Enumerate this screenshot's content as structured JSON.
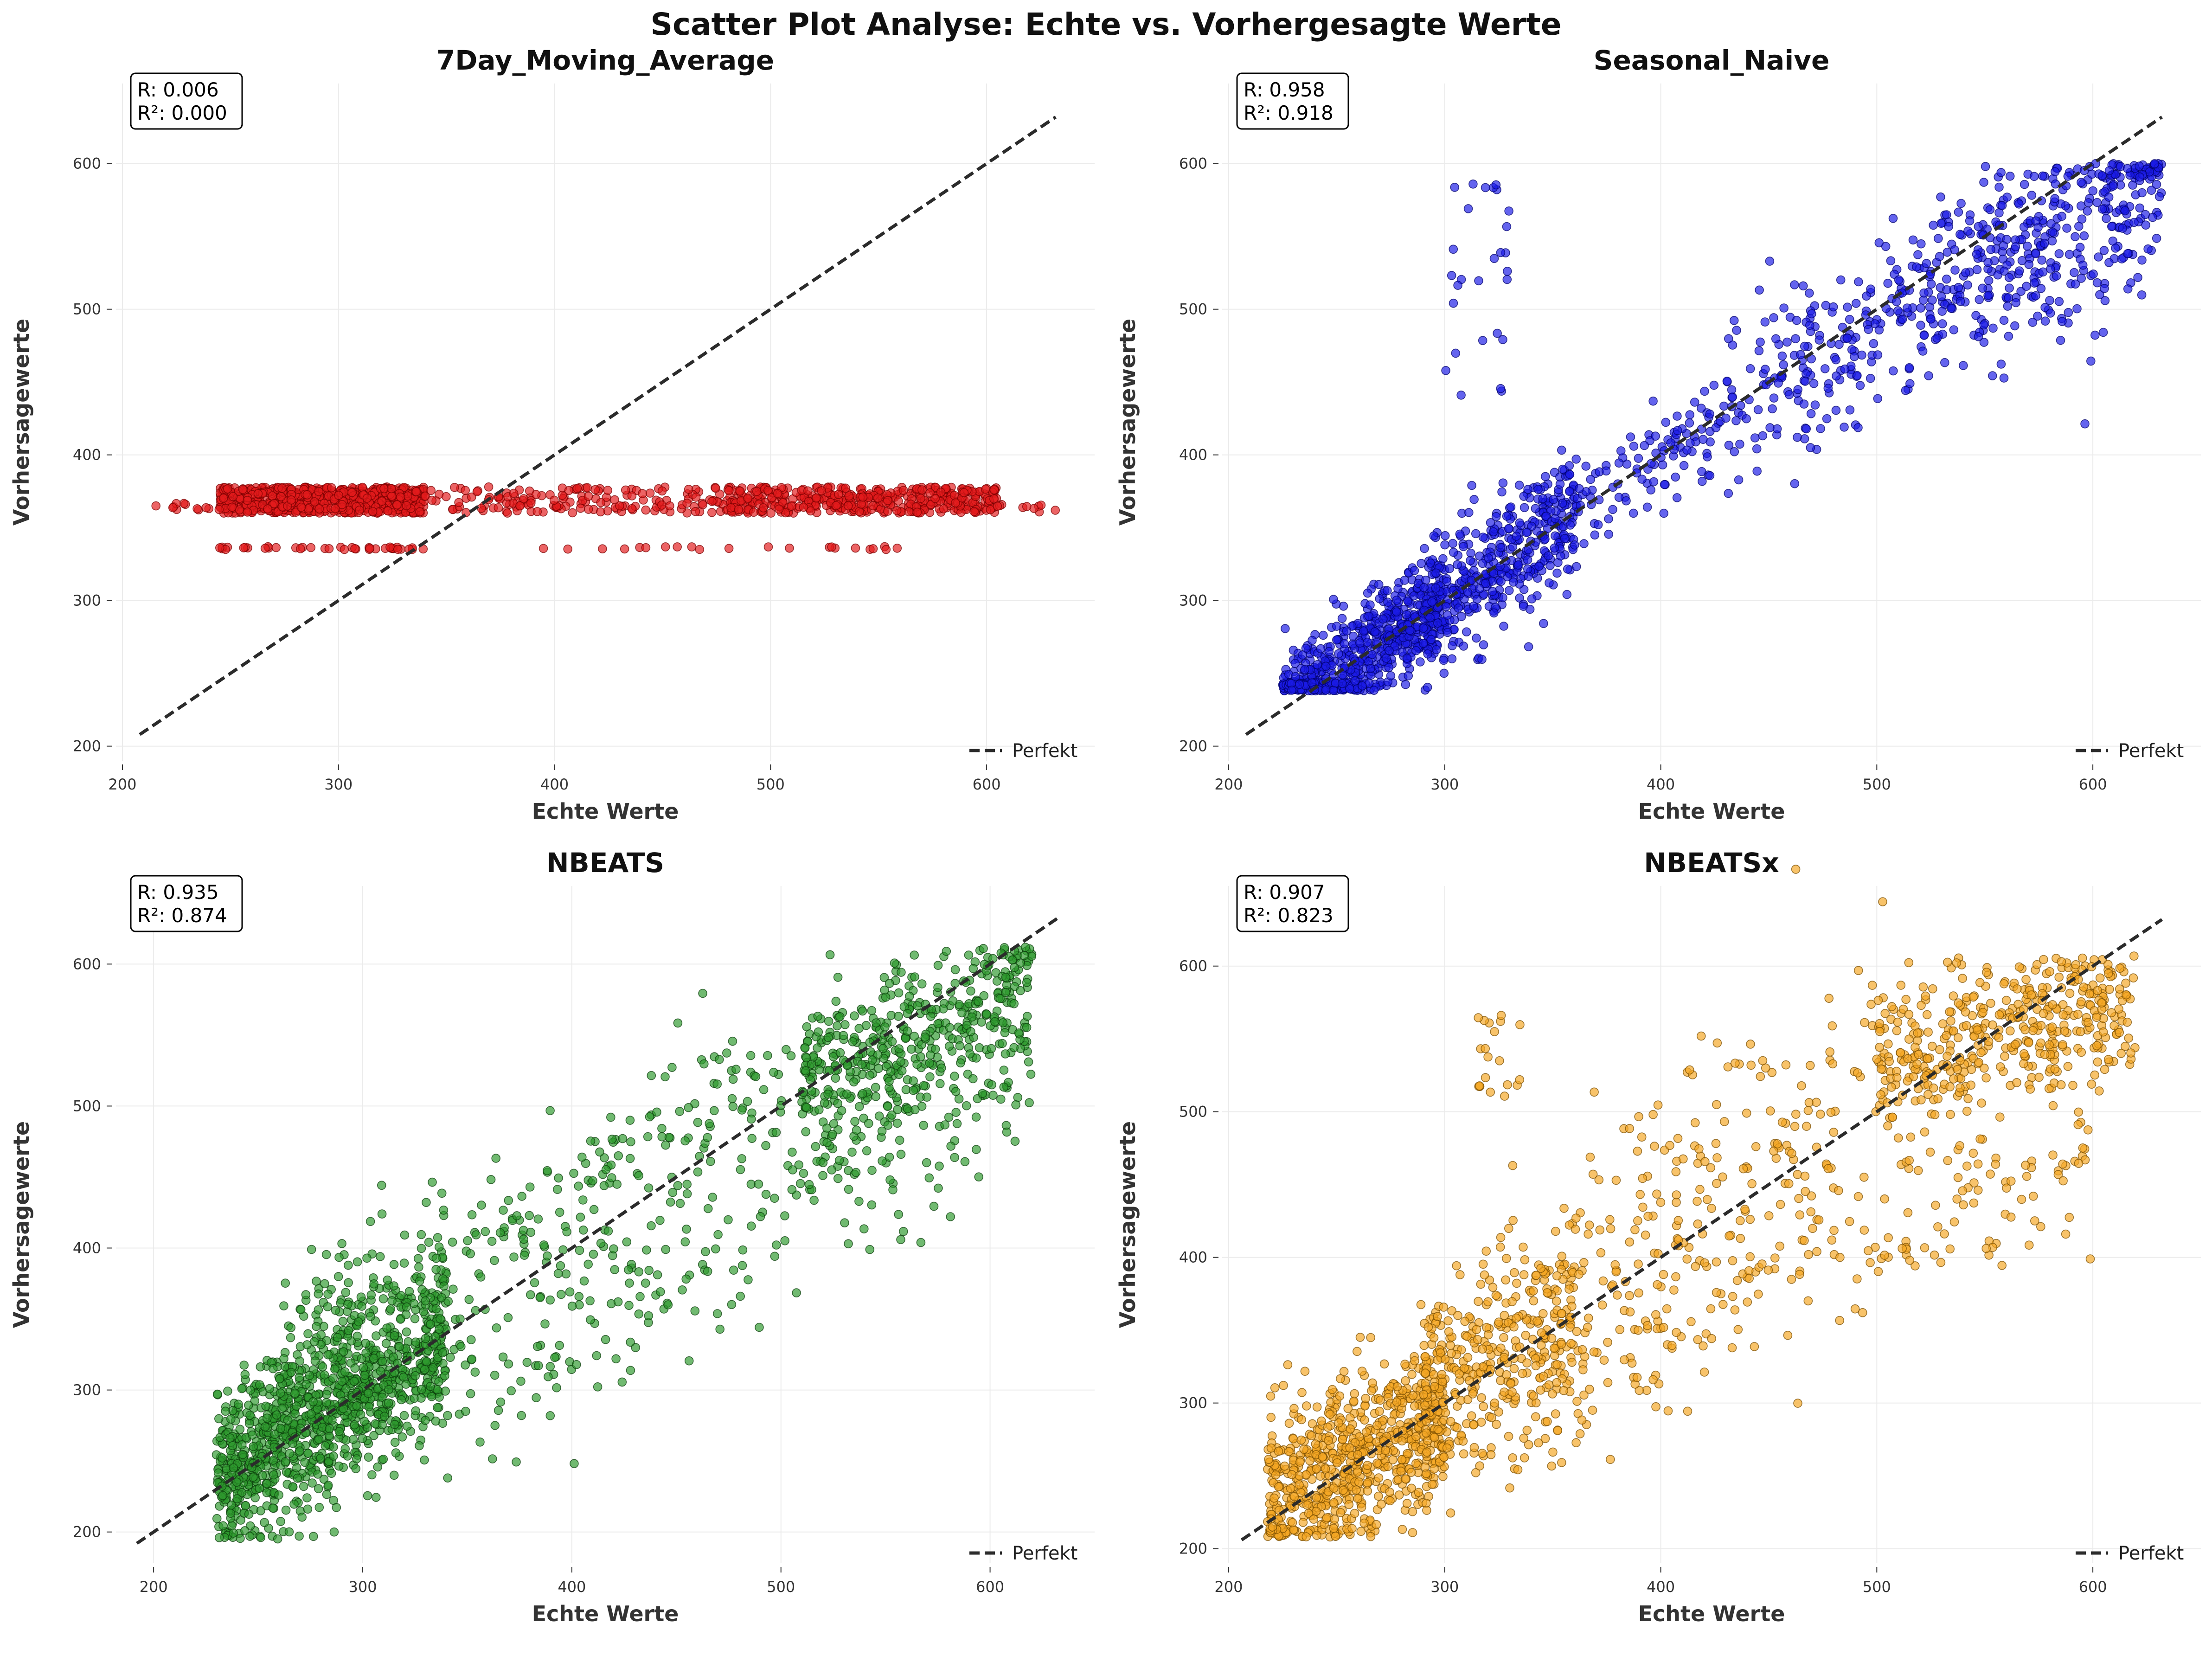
{
  "figure": {
    "title": "Scatter Plot Analyse: Echte vs. Vorhergesagte Werte"
  },
  "chart_data": [
    {
      "type": "scatter",
      "title": "7Day_Moving_Average",
      "xlabel": "Echte Werte",
      "ylabel": "Vorhersagewerte",
      "xlim": [
        197,
        650
      ],
      "ylim": [
        190,
        655
      ],
      "xticks": [
        200,
        300,
        400,
        500,
        600
      ],
      "yticks": [
        200,
        300,
        400,
        500,
        600
      ],
      "stats": {
        "r": "R: 0.006",
        "r2": "R²: 0.000"
      },
      "color": "#e31a1c",
      "edge": "#7a0000",
      "perfect_line": [
        [
          208,
          208
        ],
        [
          632,
          632
        ]
      ],
      "legend": {
        "label": "Perfekt",
        "position": "lower-right"
      },
      "grid": true,
      "clusters": [
        {
          "type": "hband",
          "x": [
            245,
            340
          ],
          "y": [
            360,
            378
          ],
          "n": 700
        },
        {
          "type": "hband",
          "x": [
            340,
            480
          ],
          "y": [
            360,
            378
          ],
          "n": 160
        },
        {
          "type": "hband",
          "x": [
            480,
            605
          ],
          "y": [
            360,
            378
          ],
          "n": 420
        },
        {
          "type": "hband",
          "x": [
            215,
            245
          ],
          "y": [
            362,
            367
          ],
          "n": 12
        },
        {
          "type": "hband",
          "x": [
            605,
            632
          ],
          "y": [
            360,
            366
          ],
          "n": 10
        },
        {
          "type": "hband",
          "x": [
            245,
            340
          ],
          "y": [
            335,
            337
          ],
          "n": 40
        },
        {
          "type": "hband",
          "x": [
            380,
            560
          ],
          "y": [
            335,
            337
          ],
          "n": 22
        }
      ]
    },
    {
      "type": "scatter",
      "title": "Seasonal_Naive",
      "xlabel": "Echte Werte",
      "ylabel": "Vorhersagewerte",
      "xlim": [
        197,
        650
      ],
      "ylim": [
        190,
        655
      ],
      "xticks": [
        200,
        300,
        400,
        500,
        600
      ],
      "yticks": [
        200,
        300,
        400,
        500,
        600
      ],
      "stats": {
        "r": "R: 0.958",
        "r2": "R²: 0.918"
      },
      "color": "#1a1ae6",
      "edge": "#00006b",
      "perfect_line": [
        [
          208,
          208
        ],
        [
          632,
          632
        ]
      ],
      "legend": {
        "label": "Perfekt",
        "position": "lower-right"
      },
      "grid": true,
      "clusters": [
        {
          "type": "diag",
          "x": [
            225,
            300
          ],
          "slope": 1.0,
          "offset": 0,
          "spread": 20,
          "ymin": 238,
          "n": 650
        },
        {
          "type": "diag",
          "x": [
            290,
            360
          ],
          "slope": 1.0,
          "offset": 0,
          "spread": 22,
          "ymin": 238,
          "n": 420
        },
        {
          "type": "diag",
          "x": [
            360,
            430
          ],
          "slope": 1.0,
          "offset": 0,
          "spread": 18,
          "n": 110
        },
        {
          "type": "diag",
          "x": [
            430,
            520
          ],
          "slope": 0.95,
          "offset": 15,
          "spread": 28,
          "n": 200
        },
        {
          "type": "diag",
          "x": [
            520,
            632
          ],
          "slope": 0.8,
          "offset": 85,
          "spread": 35,
          "ymax": 600,
          "n": 420
        },
        {
          "type": "box",
          "x": [
            300,
            330
          ],
          "y": [
            440,
            590
          ],
          "n": 28
        }
      ]
    },
    {
      "type": "scatter",
      "title": "NBEATS",
      "xlabel": "Echte Werte",
      "ylabel": "Vorhersagewerte",
      "xlim": [
        182,
        650
      ],
      "ylim": [
        178,
        655
      ],
      "xticks": [
        200,
        300,
        400,
        500,
        600
      ],
      "yticks": [
        200,
        300,
        400,
        500,
        600
      ],
      "stats": {
        "r": "R: 0.935",
        "r2": "R²: 0.874"
      },
      "color": "#2e9a2e",
      "edge": "#0b3d0b",
      "perfect_line": [
        [
          192,
          192
        ],
        [
          632,
          632
        ]
      ],
      "legend": {
        "label": "Perfekt",
        "position": "lower-right"
      },
      "grid": true,
      "clusters": [
        {
          "type": "diag",
          "x": [
            230,
            340
          ],
          "slope": 0.9,
          "offset": 30,
          "spread": 30,
          "ymin": 195,
          "n": 1100
        },
        {
          "type": "diag",
          "x": [
            260,
            340
          ],
          "slope": 1.0,
          "offset": 60,
          "spread": 30,
          "n": 120
        },
        {
          "type": "diag",
          "x": [
            340,
            520
          ],
          "slope": 0.95,
          "offset": 55,
          "spread": 30,
          "n": 180
        },
        {
          "type": "diag",
          "x": [
            340,
            560
          ],
          "slope": 0.95,
          "offset": -40,
          "spread": 35,
          "n": 180
        },
        {
          "type": "diag",
          "x": [
            510,
            620
          ],
          "slope": 0.6,
          "offset": 210,
          "spread": 28,
          "ymax": 612,
          "n": 420
        },
        {
          "type": "diag",
          "x": [
            520,
            620
          ],
          "slope": 0.8,
          "offset": 40,
          "spread": 40,
          "n": 90
        }
      ]
    },
    {
      "type": "scatter",
      "title": "NBEATSx",
      "xlabel": "Echte Werte",
      "ylabel": "Vorhersagewerte",
      "xlim": [
        197,
        650
      ],
      "ylim": [
        190,
        655
      ],
      "xticks": [
        200,
        300,
        400,
        500,
        600
      ],
      "yticks": [
        200,
        300,
        400,
        500,
        600
      ],
      "stats": {
        "r": "R: 0.907",
        "r2": "R²: 0.823"
      },
      "color": "#f5a623",
      "edge": "#7a4d00",
      "perfect_line": [
        [
          206,
          206
        ],
        [
          632,
          632
        ]
      ],
      "legend": {
        "label": "Perfekt",
        "position": "lower-right"
      },
      "grid": true,
      "clusters": [
        {
          "type": "diag",
          "x": [
            218,
            300
          ],
          "slope": 0.7,
          "offset": 80,
          "spread": 30,
          "ymin": 208,
          "n": 700
        },
        {
          "type": "diag",
          "x": [
            290,
            360
          ],
          "slope": 0.9,
          "offset": 40,
          "spread": 35,
          "n": 350
        },
        {
          "type": "diag",
          "x": [
            330,
            480
          ],
          "slope": 1.0,
          "offset": -40,
          "spread": 40,
          "n": 180
        },
        {
          "type": "diag",
          "x": [
            360,
            520
          ],
          "slope": 0.9,
          "offset": 80,
          "spread": 45,
          "n": 160
        },
        {
          "type": "diag",
          "x": [
            500,
            620
          ],
          "slope": 0.35,
          "offset": 360,
          "spread": 25,
          "ymax": 607,
          "n": 420
        },
        {
          "type": "diag",
          "x": [
            480,
            600
          ],
          "slope": 0.7,
          "offset": 60,
          "spread": 35,
          "n": 100
        },
        {
          "type": "box",
          "x": [
            315,
            335
          ],
          "y": [
            510,
            570
          ],
          "n": 20
        }
      ]
    }
  ]
}
